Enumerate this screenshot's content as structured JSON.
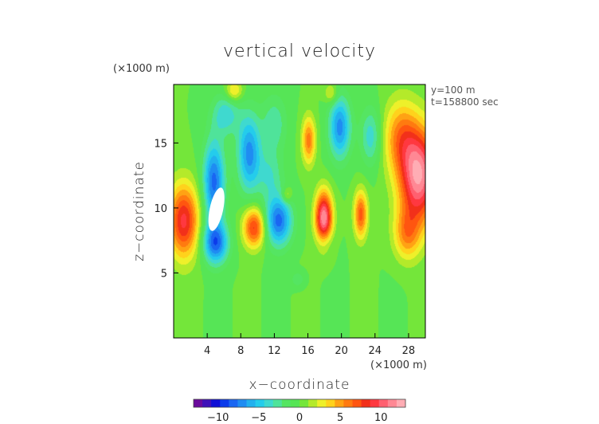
{
  "chart_data": {
    "type": "heatmap",
    "title": "vertical velocity",
    "xlabel": "x−coordinate",
    "ylabel": "z−coordinate",
    "x_unit": "(×1000 m)",
    "y_unit": "(×1000 m)",
    "xlim": [
      0,
      30
    ],
    "ylim": [
      0,
      19.5
    ],
    "x_ticks": [
      4,
      8,
      12,
      16,
      20,
      24,
      28
    ],
    "y_ticks": [
      5,
      10,
      15
    ],
    "annotations": [
      "y=100 m",
      "t=158800 sec"
    ],
    "colorbar": {
      "vmin": -13,
      "vmax": 13,
      "ticks": [
        -10,
        -5,
        0,
        5,
        10
      ],
      "tick_labels": [
        "−10",
        "−5",
        "0",
        "5",
        "10"
      ],
      "colors": [
        "#6a0a9c",
        "#3f11b8",
        "#0f0fd6",
        "#0b3bea",
        "#1a66f2",
        "#1f8cf2",
        "#22b0ee",
        "#24ccec",
        "#3fd9cf",
        "#4fe39a",
        "#55e562",
        "#56e556",
        "#74e63a",
        "#b4ea2a",
        "#eef02a",
        "#ffd21c",
        "#ffa214",
        "#ff7a10",
        "#ff5510",
        "#f2301a",
        "#ff3840",
        "#ff6070",
        "#ff8894",
        "#ffadb4"
      ]
    },
    "features": [
      {
        "x": 1.2,
        "z": 9.0,
        "value": 9,
        "sx": 1.8,
        "sz": 2.8
      },
      {
        "x": 29.2,
        "z": 12.5,
        "value": 12,
        "sx": 2.3,
        "sz": 3.6
      },
      {
        "x": 27.0,
        "z": 15.5,
        "value": 5,
        "sx": 2.0,
        "sz": 2.8
      },
      {
        "x": 27.8,
        "z": 8.0,
        "value": 5,
        "sx": 1.6,
        "sz": 2.0
      },
      {
        "x": 4.8,
        "z": 12.0,
        "value": -8,
        "sx": 1.3,
        "sz": 3.2
      },
      {
        "x": 5.0,
        "z": 7.3,
        "value": -8,
        "sx": 1.5,
        "sz": 1.6
      },
      {
        "x": 9.0,
        "z": 14.2,
        "value": -7,
        "sx": 1.4,
        "sz": 3.0
      },
      {
        "x": 6.2,
        "z": 17.2,
        "value": -4,
        "sx": 1.6,
        "sz": 1.6
      },
      {
        "x": 12.5,
        "z": 9.0,
        "value": -8,
        "sx": 1.6,
        "sz": 1.9
      },
      {
        "x": 11.5,
        "z": 12.5,
        "value": -3,
        "sx": 1.5,
        "sz": 2.0
      },
      {
        "x": 12.0,
        "z": 16.5,
        "value": -3,
        "sx": 1.5,
        "sz": 2.2
      },
      {
        "x": 19.8,
        "z": 16.2,
        "value": -7,
        "sx": 1.3,
        "sz": 2.4
      },
      {
        "x": 23.5,
        "z": 15.5,
        "value": -4,
        "sx": 1.2,
        "sz": 2.2
      },
      {
        "x": 18.0,
        "z": 7.5,
        "value": -2,
        "sx": 1.0,
        "sz": 1.0
      },
      {
        "x": 14.8,
        "z": 4.5,
        "value": -2,
        "sx": 0.8,
        "sz": 0.6
      },
      {
        "x": 9.6,
        "z": 8.5,
        "value": 8,
        "sx": 1.3,
        "sz": 1.5
      },
      {
        "x": 17.9,
        "z": 9.2,
        "value": 12,
        "sx": 1.0,
        "sz": 2.0
      },
      {
        "x": 22.3,
        "z": 9.5,
        "value": 7,
        "sx": 0.8,
        "sz": 1.8
      },
      {
        "x": 16.1,
        "z": 15.2,
        "value": 6,
        "sx": 0.8,
        "sz": 1.8
      },
      {
        "x": 7.2,
        "z": 19.0,
        "value": 4,
        "sx": 1.0,
        "sz": 0.8
      },
      {
        "x": 18.8,
        "z": 18.8,
        "value": 3,
        "sx": 0.8,
        "sz": 0.8
      },
      {
        "x": 13.5,
        "z": 11.0,
        "value": 3,
        "sx": 0.6,
        "sz": 0.6
      }
    ],
    "masked_region": {
      "x": 5.1,
      "z": 9.9,
      "rx": 0.8,
      "rz": 1.7
    }
  }
}
